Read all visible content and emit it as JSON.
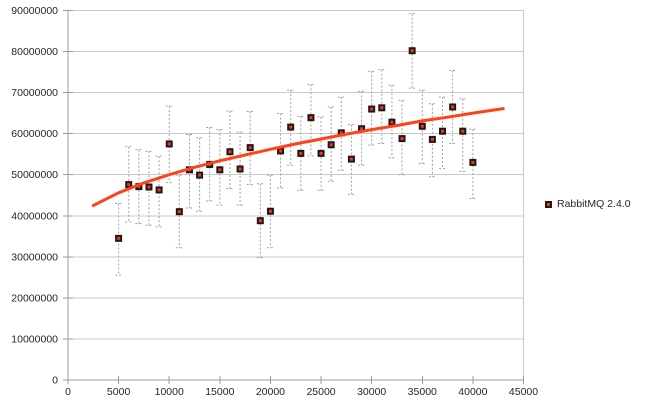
{
  "legend": {
    "label": "RabbitMQ 2.4.0"
  },
  "colors": {
    "background": "#ffffff",
    "grid": "#c9c9c9",
    "axis": "#9b9b9b",
    "tick_text": "#262626",
    "error_bar": "#a0a0a0",
    "marker_border": "#1a1a1a",
    "marker_fill": "#ff3211",
    "trend": "#ff4219"
  },
  "chart_data": {
    "type": "scatter",
    "title": "",
    "xlabel": "",
    "ylabel": "",
    "xlim": [
      0,
      45000
    ],
    "ylim": [
      0,
      90000000
    ],
    "x_ticks": [
      0,
      5000,
      10000,
      15000,
      20000,
      25000,
      30000,
      35000,
      40000,
      45000
    ],
    "y_ticks": [
      0,
      10000000,
      20000000,
      30000000,
      40000000,
      50000000,
      60000000,
      70000000,
      80000000,
      90000000
    ],
    "grid": true,
    "legend_position": "right",
    "point_format": [
      "x",
      "y",
      "y_low",
      "y_high"
    ],
    "series": [
      {
        "name": "RabbitMQ 2.4.0",
        "points": [
          [
            5000,
            34500000,
            25500000,
            43000000
          ],
          [
            6000,
            47600000,
            38500000,
            56800000
          ],
          [
            7000,
            47100000,
            38100000,
            56100000
          ],
          [
            8000,
            47000000,
            37700000,
            55700000
          ],
          [
            9000,
            46300000,
            37300000,
            54500000
          ],
          [
            10000,
            57500000,
            48100000,
            66700000
          ],
          [
            11000,
            41000000,
            32200000,
            49900000
          ],
          [
            12000,
            51200000,
            41900000,
            59800000
          ],
          [
            13000,
            49900000,
            41100000,
            59000000
          ],
          [
            14000,
            52500000,
            43600000,
            61500000
          ],
          [
            15000,
            51200000,
            42600000,
            61000000
          ],
          [
            16000,
            55600000,
            46600000,
            65500000
          ],
          [
            17000,
            51400000,
            42600000,
            60400000
          ],
          [
            18000,
            56600000,
            47600000,
            65400000
          ],
          [
            19000,
            38800000,
            29800000,
            47800000
          ],
          [
            20000,
            41100000,
            32200000,
            49900000
          ],
          [
            21000,
            55800000,
            46800000,
            64900000
          ],
          [
            22000,
            61600000,
            52300000,
            70600000
          ],
          [
            23000,
            55200000,
            46200000,
            64200000
          ],
          [
            24000,
            63900000,
            54600000,
            72000000
          ],
          [
            25000,
            55200000,
            46200000,
            64100000
          ],
          [
            26000,
            57300000,
            48400000,
            66500000
          ],
          [
            27000,
            60200000,
            51100000,
            68900000
          ],
          [
            28000,
            53800000,
            45200000,
            62200000
          ],
          [
            29000,
            61200000,
            52300000,
            70300000
          ],
          [
            30000,
            66000000,
            57200000,
            75200000
          ],
          [
            31000,
            66300000,
            57600000,
            75600000
          ],
          [
            32000,
            62800000,
            54100000,
            71800000
          ],
          [
            33000,
            58800000,
            50000000,
            68100000
          ],
          [
            34000,
            80200000,
            71100000,
            89200000
          ],
          [
            35000,
            61800000,
            52700000,
            70600000
          ],
          [
            36000,
            58600000,
            49500000,
            67300000
          ],
          [
            37000,
            60600000,
            51500000,
            68900000
          ],
          [
            38000,
            66500000,
            57600000,
            75400000
          ],
          [
            39000,
            60600000,
            50800000,
            68500000
          ],
          [
            40000,
            53000000,
            44200000,
            61100000
          ]
        ]
      }
    ],
    "trend_line": {
      "series": "RabbitMQ 2.4.0",
      "shape": "sqrt-fit",
      "points": [
        [
          2500,
          42500000
        ],
        [
          5000,
          45600000
        ],
        [
          7500,
          48000000
        ],
        [
          10000,
          50000000
        ],
        [
          12500,
          51800000
        ],
        [
          15000,
          53400000
        ],
        [
          17500,
          54800000
        ],
        [
          20000,
          56200000
        ],
        [
          22500,
          57500000
        ],
        [
          25000,
          58700000
        ],
        [
          27500,
          59900000
        ],
        [
          30000,
          61000000
        ],
        [
          32500,
          62000000
        ],
        [
          35000,
          63100000
        ],
        [
          37500,
          64000000
        ],
        [
          40000,
          65000000
        ],
        [
          42500,
          65900000
        ],
        [
          43000,
          66100000
        ]
      ]
    }
  }
}
